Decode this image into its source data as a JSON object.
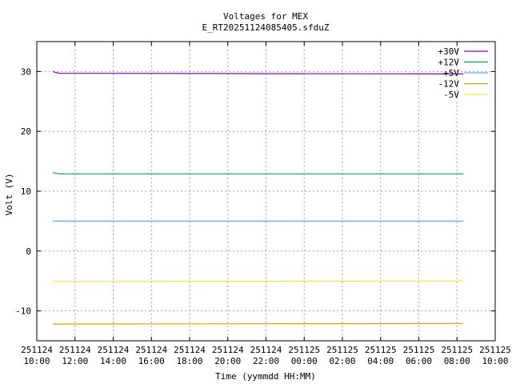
{
  "chart_data": {
    "type": "line",
    "title": "Voltages for MEX",
    "subtitle": "E_RT20251124085405.sfduZ",
    "xlabel": "Time (yymmdd HH:MM)",
    "ylabel": "Volt (V)",
    "xlim": [
      "2025-11-24 10:00",
      "2025-11-25 10:00"
    ],
    "ylim": [
      -15,
      35
    ],
    "grid": true,
    "legend_position": "top-right",
    "x_ticks": [
      {
        "value": "2025-11-24 10:00",
        "date": "251124",
        "time": "10:00"
      },
      {
        "value": "2025-11-24 12:00",
        "date": "251124",
        "time": "12:00"
      },
      {
        "value": "2025-11-24 14:00",
        "date": "251124",
        "time": "14:00"
      },
      {
        "value": "2025-11-24 16:00",
        "date": "251124",
        "time": "16:00"
      },
      {
        "value": "2025-11-24 18:00",
        "date": "251124",
        "time": "18:00"
      },
      {
        "value": "2025-11-24 20:00",
        "date": "251124",
        "time": "20:00"
      },
      {
        "value": "2025-11-24 22:00",
        "date": "251124",
        "time": "22:00"
      },
      {
        "value": "2025-11-25 00:00",
        "date": "251125",
        "time": "00:00"
      },
      {
        "value": "2025-11-25 02:00",
        "date": "251125",
        "time": "02:00"
      },
      {
        "value": "2025-11-25 04:00",
        "date": "251125",
        "time": "04:00"
      },
      {
        "value": "2025-11-25 06:00",
        "date": "251125",
        "time": "06:00"
      },
      {
        "value": "2025-11-25 08:00",
        "date": "251125",
        "time": "08:00"
      },
      {
        "value": "2025-11-25 10:00",
        "date": "251125",
        "time": "10:00"
      }
    ],
    "y_ticks": [
      -10,
      0,
      10,
      20,
      30
    ],
    "series": [
      {
        "name": "+30V",
        "color": "#9400d3",
        "points": [
          [
            "2025-11-24 10:50",
            30.0
          ],
          [
            "2025-11-24 11:10",
            29.7
          ],
          [
            "2025-11-25 08:20",
            29.6
          ]
        ]
      },
      {
        "name": "+12V",
        "color": "#009e73",
        "points": [
          [
            "2025-11-24 10:50",
            13.1
          ],
          [
            "2025-11-24 11:10",
            12.9
          ],
          [
            "2025-11-25 08:20",
            12.9
          ]
        ]
      },
      {
        "name": "+5V",
        "color": "#56b4e9",
        "points": [
          [
            "2025-11-24 10:50",
            5.0
          ],
          [
            "2025-11-25 08:20",
            5.0
          ]
        ]
      },
      {
        "name": "-12V",
        "color": "#e69f00",
        "points": [
          [
            "2025-11-24 10:50",
            -12.2
          ],
          [
            "2025-11-25 08:20",
            -12.1
          ]
        ]
      },
      {
        "name": "-5V",
        "color": "#f0e442",
        "points": [
          [
            "2025-11-24 10:50",
            -5.1
          ],
          [
            "2025-11-25 08:20",
            -5.0
          ]
        ]
      }
    ]
  }
}
